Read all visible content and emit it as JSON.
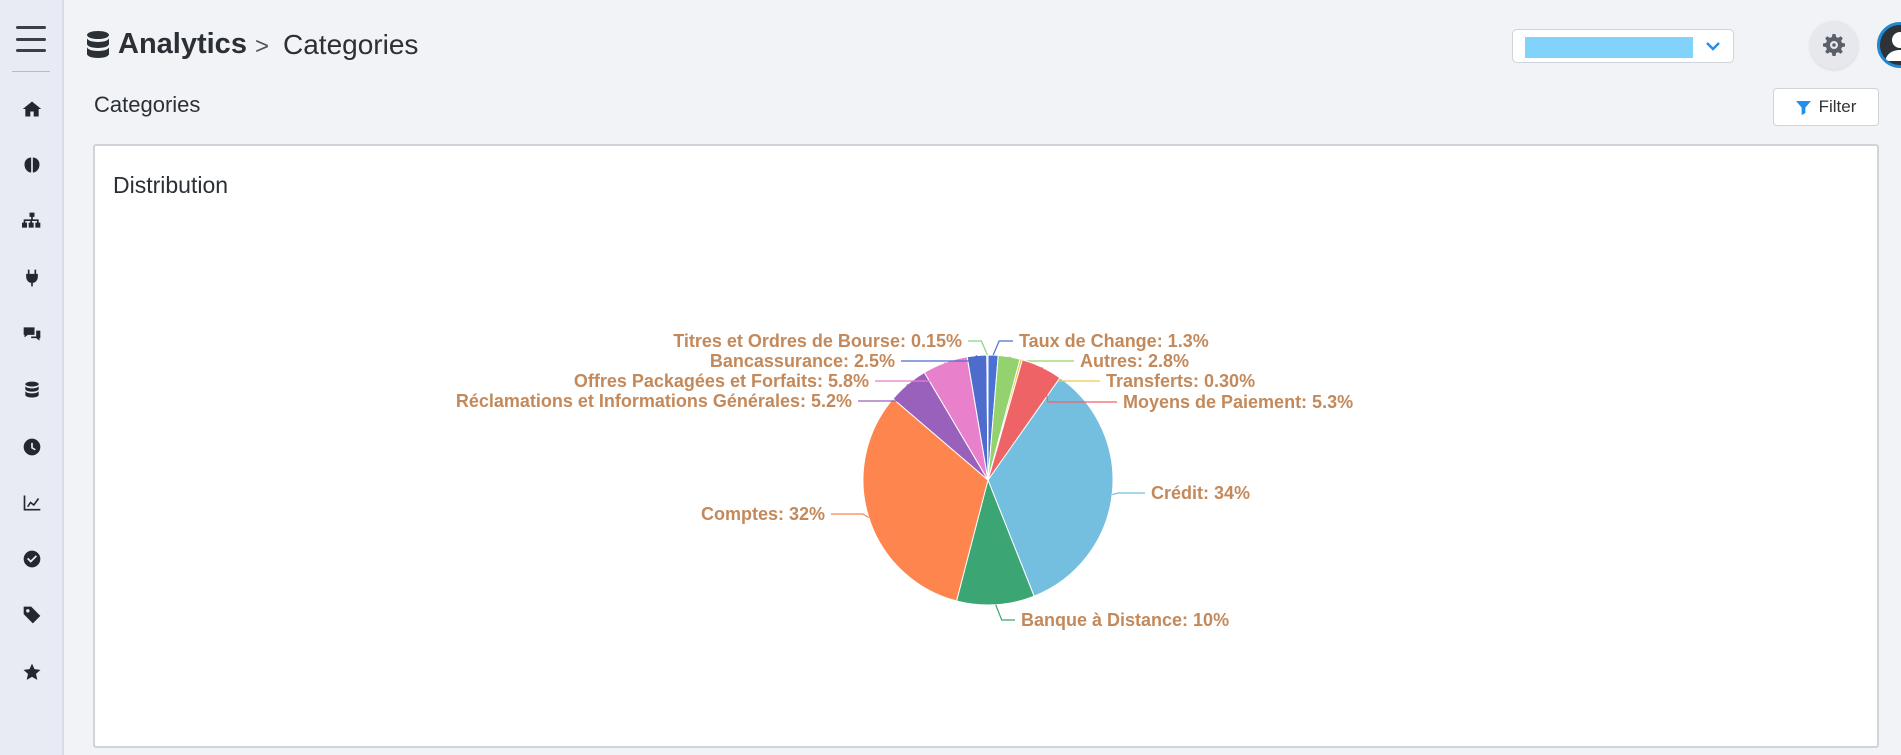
{
  "header": {
    "app_title": "Analytics",
    "breadcrumb_separator": ">",
    "page_crumb": "Categories"
  },
  "page": {
    "title": "Categories",
    "filter_label": "Filter"
  },
  "sidebar": {
    "items": [
      {
        "icon": "home-icon"
      },
      {
        "icon": "brain-icon"
      },
      {
        "icon": "sitemap-icon"
      },
      {
        "icon": "plug-icon"
      },
      {
        "icon": "comments-icon"
      },
      {
        "icon": "database-icon"
      },
      {
        "icon": "clock-icon"
      },
      {
        "icon": "chart-line-icon"
      },
      {
        "icon": "check-circle-icon"
      },
      {
        "icon": "tag-icon"
      },
      {
        "icon": "star-icon"
      }
    ]
  },
  "colors": {
    "accent": "#1f8ff0",
    "label": "#c4895a",
    "selector_value": "#82d3fb"
  },
  "card": {
    "title": "Distribution"
  },
  "chart_data": {
    "type": "pie",
    "slices": [
      {
        "label": "Crédit: 34%",
        "name": "Crédit",
        "value": 34,
        "color": "#74bedf"
      },
      {
        "label": "Banque à Distance: 10%",
        "name": "Banque à Distance",
        "value": 10,
        "color": "#3ba574"
      },
      {
        "label": "Comptes: 32%",
        "name": "Comptes",
        "value": 32,
        "color": "#fe854d"
      },
      {
        "label": "Réclamations et Informations Générales: 5.2%",
        "name": "Réclamations et Informations Générales",
        "value": 5.2,
        "color": "#9961bb"
      },
      {
        "label": "Offres Packagées et Forfaits: 5.8%",
        "name": "Offres Packagées et Forfaits",
        "value": 5.8,
        "color": "#e880cb"
      },
      {
        "label": "Bancassurance: 2.5%",
        "name": "Bancassurance",
        "value": 2.5,
        "color": "#4e6ccc"
      },
      {
        "label": "Titres et Ordres de Bourse: 0.15%",
        "name": "Titres et Ordres de Bourse",
        "value": 0.15,
        "color": "#8bd08c"
      },
      {
        "label": "Taux de Change: 1.3%",
        "name": "Taux de Change",
        "value": 1.3,
        "color": "#4a72d4"
      },
      {
        "label": "Autres: 2.8%",
        "name": "Autres",
        "value": 2.8,
        "color": "#93d26e"
      },
      {
        "label": "Transferts: 0.30%",
        "name": "Transferts",
        "value": 0.3,
        "color": "#f0c64a"
      },
      {
        "label": "Moyens de Paiement: 5.3%",
        "name": "Moyens de Paiement",
        "value": 5.3,
        "color": "#ee6466"
      }
    ]
  }
}
